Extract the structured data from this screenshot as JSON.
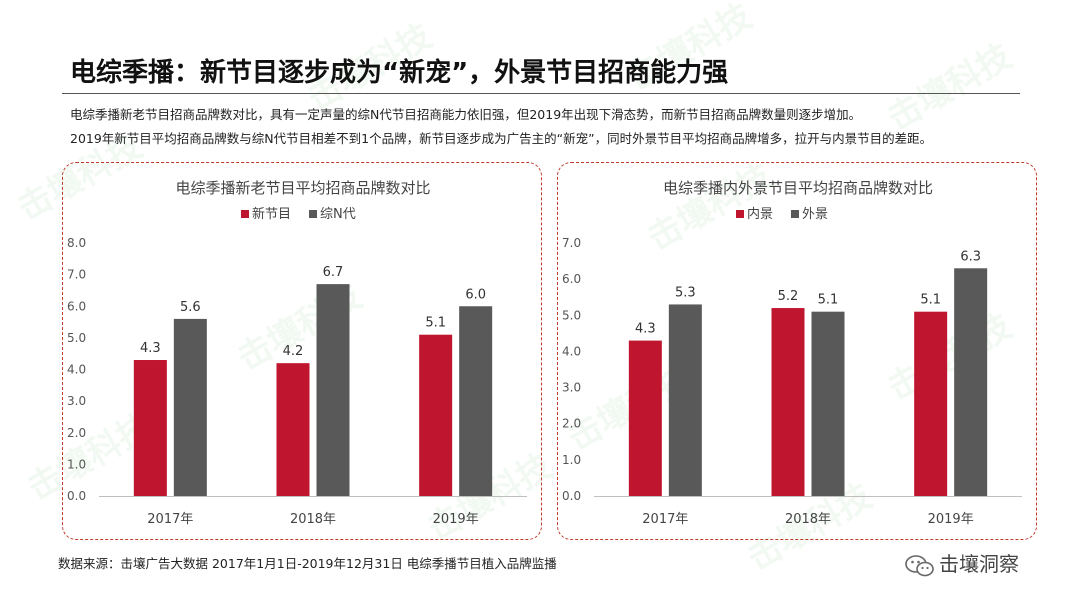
{
  "page": {
    "title": "电综季播：新节目逐步成为“新宠”，外景节目招商能力强",
    "desc_line1": "电综季播新老节目招商品牌数对比，具有一定声量的综N代节目招商能力依旧强，但2019年出现下滑态势，而新节目招商品牌数量则逐步增加。",
    "desc_line2": "2019年新节目平均招商品牌数与综N代节目相差不到1个品牌，新节目逐步成为广告主的“新宠”，同时外景节目平均招商品牌增多，拉开与内景节目的差距。",
    "footer": "数据来源：击壤广告大数据 2017年1月1日-2019年12月31日 电综季播节目植入品牌监播",
    "brand": "击壤洞察",
    "watermark": "击壤科技",
    "colors": {
      "red": "#c0152f",
      "gray": "#595959",
      "border": "#c0392b"
    }
  },
  "chart_data": [
    {
      "type": "bar",
      "title": "电综季播新老节目平均招商品牌数对比",
      "categories": [
        "2017年",
        "2018年",
        "2019年"
      ],
      "series": [
        {
          "name": "新节目",
          "values": [
            4.3,
            4.2,
            5.1
          ],
          "color": "#c0152f"
        },
        {
          "name": "综N代",
          "values": [
            5.6,
            6.7,
            6.0
          ],
          "color": "#595959"
        }
      ],
      "ylim": [
        0,
        8
      ],
      "yticks": [
        "0.0",
        "1.0",
        "2.0",
        "3.0",
        "4.0",
        "5.0",
        "6.0",
        "7.0",
        "8.0"
      ],
      "legend": "top",
      "grid": false
    },
    {
      "type": "bar",
      "title": "电综季播内外景节目平均招商品牌数对比",
      "categories": [
        "2017年",
        "2018年",
        "2019年"
      ],
      "series": [
        {
          "name": "内景",
          "values": [
            4.3,
            5.2,
            5.1
          ],
          "color": "#c0152f"
        },
        {
          "name": "外景",
          "values": [
            5.3,
            5.1,
            6.3
          ],
          "color": "#595959"
        }
      ],
      "ylim": [
        0,
        7
      ],
      "yticks": [
        "0.0",
        "1.0",
        "2.0",
        "3.0",
        "4.0",
        "5.0",
        "6.0",
        "7.0"
      ],
      "legend": "top",
      "grid": false
    }
  ]
}
